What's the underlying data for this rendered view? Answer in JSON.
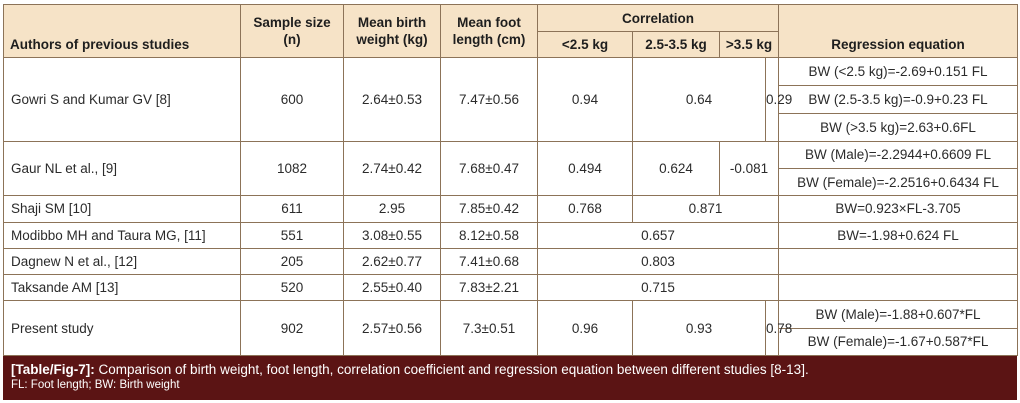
{
  "table": {
    "headers": {
      "authors": "Authors of previous studies",
      "sample_size": "Sample size (n)",
      "mean_birth_weight": "Mean birth weight (kg)",
      "mean_foot_length": "Mean foot length (cm)",
      "correlation": "Correlation",
      "corr_lt25": "<2.5 kg",
      "corr_25_35": "2.5-3.5 kg",
      "corr_gt35": ">3.5 kg",
      "regression": "Regression equation"
    },
    "rows": [
      {
        "author": "Gowri S and Kumar GV [8]",
        "n": "600",
        "bw": "2.64±0.53",
        "fl": "7.47±0.56",
        "corr": [
          "0.94",
          "0.64",
          "0.29"
        ],
        "regressions": [
          "BW (<2.5 kg)=-2.69+0.151 FL",
          "BW (2.5-3.5 kg)=-0.9+0.23 FL",
          "BW (>3.5 kg)=2.63+0.6FL"
        ]
      },
      {
        "author": "Gaur NL et al., [9]",
        "n": "1082",
        "bw": "2.74±0.42",
        "fl": "7.68±0.47",
        "corr": [
          "0.494",
          "0.624",
          "-0.081"
        ],
        "regressions": [
          "BW (Male)=-2.2944+0.6609 FL",
          "BW (Female)=-2.2516+0.6434 FL"
        ]
      },
      {
        "author": "Shaji SM [10]",
        "n": "611",
        "bw": "2.95",
        "fl": "7.85±0.42",
        "corr": [
          "0.768",
          "0.871"
        ],
        "regression": "BW=0.923×FL-3.705"
      },
      {
        "author": "Modibbo MH and Taura MG, [11]",
        "n": "551",
        "bw": "3.08±0.55",
        "fl": "8.12±0.58",
        "corr": [
          "0.657"
        ],
        "regression": "BW=-1.98+0.624 FL"
      },
      {
        "author": "Dagnew N et al., [12]",
        "n": "205",
        "bw": "2.62±0.77",
        "fl": "7.41±0.68",
        "corr": [
          "0.803"
        ],
        "regression": ""
      },
      {
        "author": "Taksande AM [13]",
        "n": "520",
        "bw": "2.55±0.40",
        "fl": "7.83±2.21",
        "corr": [
          "0.715"
        ],
        "regression": ""
      },
      {
        "author": "Present study",
        "n": "902",
        "bw": "2.57±0.56",
        "fl": "7.3±0.51",
        "corr": [
          "0.96",
          "0.93",
          "0.78"
        ],
        "regressions": [
          "BW (Male)=-1.88+0.607*FL",
          "BW (Female)=-1.67+0.587*FL"
        ]
      }
    ]
  },
  "caption": {
    "label": "[Table/Fig-7]:",
    "text": "Comparison of birth weight, foot length, correlation coefficient and regression equation between different studies [8-13].",
    "note": "FL: Foot length; BW: Birth weight"
  },
  "colors": {
    "header_bg": "#f6e3c7",
    "border": "#8c7358",
    "caption_bg": "#5b1414",
    "caption_text": "#ffffff"
  }
}
